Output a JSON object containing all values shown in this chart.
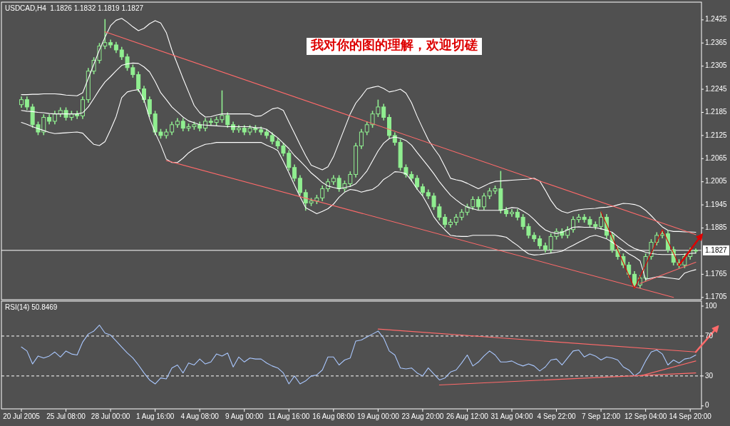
{
  "chart_data": [
    {
      "type": "candlestick",
      "title": "USDCAD,H4  1.1826 1.1832 1.1819 1.1827",
      "annotations": [
        "我对你的图的理解，欢迎切磋"
      ],
      "color": "#90ee90",
      "ylim": [
        1.1699,
        1.2471
      ],
      "yticks": [
        1.2425,
        1.2365,
        1.2305,
        1.2245,
        1.2185,
        1.2125,
        1.2065,
        1.2005,
        1.1945,
        1.1885,
        1.1765,
        1.1705
      ],
      "ref_lines": [
        {
          "axis": "y",
          "value": 1.1827,
          "label": "1.1827",
          "color": "#ffffff"
        }
      ],
      "ohlc": [
        [
          1.2205,
          1.2226,
          1.2197,
          1.2218
        ],
        [
          1.2218,
          1.2226,
          1.2191,
          1.2199
        ],
        [
          1.2199,
          1.2207,
          1.2145,
          1.2153
        ],
        [
          1.2153,
          1.2161,
          1.2126,
          1.2134
        ],
        [
          1.2134,
          1.218,
          1.2126,
          1.2172
        ],
        [
          1.2172,
          1.218,
          1.2154,
          1.2162
        ],
        [
          1.2162,
          1.2189,
          1.2154,
          1.2181
        ],
        [
          1.2181,
          1.2198,
          1.2173,
          1.219
        ],
        [
          1.219,
          1.2198,
          1.2164,
          1.2172
        ],
        [
          1.2172,
          1.2189,
          1.2164,
          1.2181
        ],
        [
          1.2181,
          1.2189,
          1.2168,
          1.2176
        ],
        [
          1.2176,
          1.2226,
          1.2168,
          1.2218
        ],
        [
          1.2218,
          1.23,
          1.221,
          1.2292
        ],
        [
          1.2292,
          1.2328,
          1.2284,
          1.232
        ],
        [
          1.232,
          1.2365,
          1.2312,
          1.2357
        ],
        [
          1.2357,
          1.2427,
          1.2349,
          1.2366
        ],
        [
          1.2366,
          1.2374,
          1.2352,
          1.236
        ],
        [
          1.236,
          1.2368,
          1.2339,
          1.2347
        ],
        [
          1.2347,
          1.2355,
          1.2321,
          1.2329
        ],
        [
          1.2329,
          1.2337,
          1.2293,
          1.2301
        ],
        [
          1.2301,
          1.2309,
          1.2275,
          1.2283
        ],
        [
          1.2283,
          1.2291,
          1.2238,
          1.2246
        ],
        [
          1.2246,
          1.2254,
          1.221,
          1.2218
        ],
        [
          1.2218,
          1.2226,
          1.2173,
          1.2181
        ],
        [
          1.2181,
          1.2189,
          1.2126,
          1.2134
        ],
        [
          1.2134,
          1.2142,
          1.2117,
          1.2125
        ],
        [
          1.2125,
          1.2142,
          1.2117,
          1.2134
        ],
        [
          1.2134,
          1.2161,
          1.2126,
          1.2153
        ],
        [
          1.2153,
          1.217,
          1.2145,
          1.2162
        ],
        [
          1.2162,
          1.217,
          1.2136,
          1.2144
        ],
        [
          1.2144,
          1.2156,
          1.2136,
          1.2148
        ],
        [
          1.2148,
          1.2161,
          1.214,
          1.2153
        ],
        [
          1.2153,
          1.2161,
          1.2136,
          1.2144
        ],
        [
          1.2144,
          1.217,
          1.2136,
          1.2162
        ],
        [
          1.2162,
          1.217,
          1.2151,
          1.2159
        ],
        [
          1.2159,
          1.2174,
          1.2151,
          1.2166
        ],
        [
          1.2166,
          1.2242,
          1.2158,
          1.2177
        ],
        [
          1.2177,
          1.2185,
          1.2145,
          1.2153
        ],
        [
          1.2153,
          1.2161,
          1.2132,
          1.214
        ],
        [
          1.214,
          1.2152,
          1.2132,
          1.2144
        ],
        [
          1.2144,
          1.2152,
          1.2126,
          1.2134
        ],
        [
          1.2134,
          1.2152,
          1.2126,
          1.2144
        ],
        [
          1.2144,
          1.2152,
          1.2132,
          1.214
        ],
        [
          1.214,
          1.2148,
          1.2126,
          1.2134
        ],
        [
          1.2134,
          1.2142,
          1.2117,
          1.2125
        ],
        [
          1.2125,
          1.2133,
          1.2102,
          1.211
        ],
        [
          1.211,
          1.2118,
          1.209,
          1.2098
        ],
        [
          1.2098,
          1.2106,
          1.2071,
          1.2079
        ],
        [
          1.2079,
          1.2087,
          1.2034,
          1.2042
        ],
        [
          1.2042,
          1.205,
          1.2006,
          1.2014
        ],
        [
          1.2014,
          1.2022,
          1.1969,
          1.1977
        ],
        [
          1.1977,
          1.1985,
          1.193,
          1.195
        ],
        [
          1.195,
          1.1963,
          1.1942,
          1.1955
        ],
        [
          1.1955,
          1.1971,
          1.1947,
          1.1963
        ],
        [
          1.1963,
          1.1995,
          1.1955,
          1.1987
        ],
        [
          1.1987,
          1.2013,
          1.1979,
          1.2005
        ],
        [
          1.2005,
          1.2022,
          1.1997,
          1.2014
        ],
        [
          1.2014,
          1.2022,
          1.1979,
          1.1987
        ],
        [
          1.1987,
          1.2008,
          1.1979,
          1.2
        ],
        [
          1.2,
          1.2032,
          1.1992,
          1.2024
        ],
        [
          1.2024,
          1.2106,
          1.2016,
          1.2098
        ],
        [
          1.2098,
          1.2142,
          1.209,
          1.2134
        ],
        [
          1.2134,
          1.2161,
          1.2126,
          1.2153
        ],
        [
          1.2153,
          1.2189,
          1.2145,
          1.2181
        ],
        [
          1.2181,
          1.2218,
          1.2173,
          1.2199
        ],
        [
          1.2199,
          1.2207,
          1.2164,
          1.2172
        ],
        [
          1.2172,
          1.218,
          1.2117,
          1.2125
        ],
        [
          1.2125,
          1.2133,
          1.2099,
          1.2107
        ],
        [
          1.2107,
          1.2115,
          1.2034,
          1.2042
        ],
        [
          1.2042,
          1.205,
          1.2016,
          1.2024
        ],
        [
          1.2024,
          1.2032,
          1.2006,
          1.2014
        ],
        [
          1.2014,
          1.2022,
          1.1984,
          1.1992
        ],
        [
          1.1992,
          1.2,
          1.1969,
          1.1977
        ],
        [
          1.1977,
          1.1985,
          1.196,
          1.1968
        ],
        [
          1.1968,
          1.1976,
          1.1932,
          1.194
        ],
        [
          1.194,
          1.1948,
          1.1905,
          1.1913
        ],
        [
          1.1913,
          1.1921,
          1.1886,
          1.1894
        ],
        [
          1.1894,
          1.1908,
          1.1886,
          1.19
        ],
        [
          1.19,
          1.1921,
          1.1892,
          1.1913
        ],
        [
          1.1913,
          1.1934,
          1.1905,
          1.1926
        ],
        [
          1.1926,
          1.1948,
          1.1918,
          1.194
        ],
        [
          1.194,
          1.1967,
          1.1932,
          1.1959
        ],
        [
          1.1959,
          1.1967,
          1.1932,
          1.194
        ],
        [
          1.194,
          1.1976,
          1.1932,
          1.1968
        ],
        [
          1.1968,
          1.1989,
          1.196,
          1.1981
        ],
        [
          1.1981,
          1.1995,
          1.1973,
          1.1987
        ],
        [
          1.1987,
          1.2033,
          1.1923,
          1.1931
        ],
        [
          1.1931,
          1.1939,
          1.1914,
          1.1922
        ],
        [
          1.1922,
          1.1934,
          1.1914,
          1.1926
        ],
        [
          1.1926,
          1.1934,
          1.1905,
          1.1913
        ],
        [
          1.1913,
          1.1921,
          1.1881,
          1.1889
        ],
        [
          1.1889,
          1.1897,
          1.1858,
          1.1866
        ],
        [
          1.1866,
          1.1874,
          1.1849,
          1.1857
        ],
        [
          1.1857,
          1.1865,
          1.1831,
          1.1839
        ],
        [
          1.1839,
          1.1847,
          1.1821,
          1.1829
        ],
        [
          1.1829,
          1.1871,
          1.1821,
          1.1863
        ],
        [
          1.1863,
          1.1884,
          1.1855,
          1.1876
        ],
        [
          1.1876,
          1.1884,
          1.1858,
          1.1866
        ],
        [
          1.1866,
          1.1889,
          1.1858,
          1.1881
        ],
        [
          1.1881,
          1.1915,
          1.1873,
          1.1907
        ],
        [
          1.1907,
          1.1921,
          1.1899,
          1.1913
        ],
        [
          1.1913,
          1.1921,
          1.1899,
          1.1907
        ],
        [
          1.1907,
          1.1915,
          1.1886,
          1.1894
        ],
        [
          1.1894,
          1.1902,
          1.1881,
          1.1889
        ],
        [
          1.1889,
          1.1927,
          1.1881,
          1.1913
        ],
        [
          1.1913,
          1.1921,
          1.1858,
          1.1866
        ],
        [
          1.1866,
          1.1874,
          1.1821,
          1.1829
        ],
        [
          1.1829,
          1.1837,
          1.1803,
          1.1811
        ],
        [
          1.1811,
          1.1819,
          1.1781,
          1.1789
        ],
        [
          1.1789,
          1.1797,
          1.1757,
          1.1765
        ],
        [
          1.1765,
          1.1773,
          1.1728,
          1.1737
        ],
        [
          1.1737,
          1.1763,
          1.1729,
          1.1755
        ],
        [
          1.1755,
          1.1819,
          1.1747,
          1.1811
        ],
        [
          1.1811,
          1.1856,
          1.1803,
          1.1848
        ],
        [
          1.1848,
          1.1874,
          1.184,
          1.1866
        ],
        [
          1.1866,
          1.1881,
          1.1858,
          1.187
        ],
        [
          1.187,
          1.1878,
          1.1821,
          1.1829
        ],
        [
          1.1829,
          1.1837,
          1.1788,
          1.1796
        ],
        [
          1.1796,
          1.1804,
          1.1781,
          1.1789
        ],
        [
          1.1789,
          1.1819,
          1.1781,
          1.1811
        ],
        [
          1.1811,
          1.1834,
          1.1803,
          1.1826
        ],
        [
          1.1826,
          1.1832,
          1.1819,
          1.1827
        ]
      ],
      "series": [
        {
          "type": "line",
          "color": "#ffffff",
          "values": [
            1.2231,
            1.2231,
            1.2232,
            1.2232,
            1.2233,
            1.2233,
            1.2233,
            1.2232,
            1.223,
            1.2229,
            1.2228,
            1.2236,
            1.2273,
            1.231,
            1.2347,
            1.238,
            1.241,
            1.2424,
            1.2429,
            1.2419,
            1.2407,
            1.2397,
            1.2403,
            1.2415,
            1.2423,
            1.2417,
            1.2392,
            1.2347,
            1.231,
            1.2273,
            1.2238,
            1.2203,
            1.2184,
            1.2173,
            1.2174,
            1.2178,
            1.2181,
            1.2181,
            1.2181,
            1.2181,
            1.2181,
            1.2181,
            1.2175,
            1.2176,
            1.2185,
            1.2194,
            1.2197,
            1.219,
            1.216,
            1.2131,
            1.2101,
            1.2073,
            1.2048,
            1.2042,
            1.2036,
            1.2044,
            1.207,
            1.2107,
            1.2144,
            1.2181,
            1.2209,
            1.2227,
            1.2246,
            1.225,
            1.2253,
            1.2247,
            1.2238,
            1.2241,
            1.2245,
            1.2235,
            1.221,
            1.2175,
            1.2144,
            1.2114,
            1.2092,
            1.2072,
            1.2044,
            1.2014,
            1.201,
            1.2007,
            1.2001,
            1.1994,
            1.1987,
            1.1994,
            1.2001,
            1.2006,
            1.2007,
            1.2008,
            1.2009,
            1.201,
            1.2011,
            1.2012,
            1.2014,
            1.2007,
            1.1983,
            1.1957,
            1.1937,
            1.1928,
            1.1924,
            1.1929,
            1.1932,
            1.1934,
            1.1935,
            1.1936,
            1.1938,
            1.1939,
            1.1941,
            1.1945,
            1.1949,
            1.1948,
            1.1946,
            1.1941,
            1.1931,
            1.1917,
            1.1902,
            1.1888,
            1.1879,
            1.1876,
            1.1876,
            1.1875,
            1.1875,
            1.1874
          ]
        },
        {
          "type": "line",
          "color": "#ffffff",
          "values": [
            1.219,
            1.2188,
            1.2187,
            1.2185,
            1.2184,
            1.2182,
            1.2181,
            1.2181,
            1.2181,
            1.2181,
            1.2181,
            1.2184,
            1.2199,
            1.2221,
            1.2244,
            1.2264,
            1.2278,
            1.2293,
            1.2307,
            1.2311,
            1.2313,
            1.2312,
            1.2303,
            1.229,
            1.2265,
            1.2236,
            1.2218,
            1.2199,
            1.2186,
            1.2173,
            1.2163,
            1.2158,
            1.2153,
            1.2152,
            1.2151,
            1.215,
            1.2149,
            1.2148,
            1.2148,
            1.2148,
            1.2148,
            1.2148,
            1.2145,
            1.2145,
            1.2141,
            1.213,
            1.2119,
            1.2105,
            1.2091,
            1.2073,
            1.2059,
            1.2044,
            1.2028,
            1.2016,
            1.2003,
            1.1994,
            1.199,
            1.1987,
            1.199,
            1.1993,
            1.2,
            1.2016,
            1.2033,
            1.2059,
            1.2085,
            1.2105,
            1.2117,
            1.2121,
            1.2118,
            1.2112,
            1.21,
            1.2081,
            1.2063,
            1.2045,
            1.2026,
            1.2005,
            1.1987,
            1.197,
            1.1958,
            1.1947,
            1.1939,
            1.1935,
            1.1931,
            1.1931,
            1.1931,
            1.1931,
            1.1931,
            1.1934,
            1.1938,
            1.1937,
            1.1929,
            1.192,
            1.1907,
            1.1892,
            1.188,
            1.1874,
            1.1871,
            1.1874,
            1.188,
            1.1887,
            1.1888,
            1.1887,
            1.1887,
            1.1886,
            1.1883,
            1.1879,
            1.1874,
            1.1862,
            1.1851,
            1.184,
            1.1832,
            1.1827,
            1.1822,
            1.1819,
            1.1817,
            1.1816,
            1.1816,
            1.1816,
            1.1816,
            1.1817,
            1.1819,
            1.182
          ]
        },
        {
          "type": "line",
          "color": "#ffffff",
          "values": [
            1.2159,
            1.2154,
            1.2148,
            1.2143,
            1.2138,
            1.2133,
            1.213,
            1.2131,
            1.2132,
            1.2133,
            1.2134,
            1.2131,
            1.2116,
            1.2102,
            1.2099,
            1.2109,
            1.214,
            1.2174,
            1.2223,
            1.2238,
            1.2242,
            1.2244,
            1.2218,
            1.2169,
            1.2132,
            1.2101,
            1.2064,
            1.2055,
            1.2055,
            1.2066,
            1.208,
            1.209,
            1.2096,
            1.2102,
            1.2104,
            1.2107,
            1.2107,
            1.2107,
            1.2107,
            1.2107,
            1.2107,
            1.2107,
            1.2107,
            1.2107,
            1.21,
            1.2094,
            1.2086,
            1.2058,
            1.2028,
            1.1996,
            1.1966,
            1.1938,
            1.193,
            1.1922,
            1.1928,
            1.1935,
            1.1947,
            1.1965,
            1.1978,
            1.1985,
            1.1983,
            1.1978,
            1.1982,
            1.1985,
            1.1995,
            1.2011,
            1.202,
            1.2031,
            1.203,
            1.2026,
            1.2008,
            1.1986,
            1.1968,
            1.1943,
            1.1914,
            1.1895,
            1.188,
            1.1866,
            1.1864,
            1.1863,
            1.1863,
            1.1866,
            1.1866,
            1.1866,
            1.1866,
            1.1866,
            1.1864,
            1.1861,
            1.185,
            1.184,
            1.1828,
            1.1818,
            1.1815,
            1.1816,
            1.1818,
            1.182,
            1.1822,
            1.1825,
            1.1833,
            1.184,
            1.1848,
            1.1855,
            1.1863,
            1.1866,
            1.1862,
            1.1857,
            1.1848,
            1.1838,
            1.1828,
            1.1818,
            1.181,
            1.18,
            1.1752,
            1.1755,
            1.1758,
            1.1758,
            1.1756,
            1.1754,
            1.1752,
            1.1768,
            1.1773,
            1.1777
          ]
        },
        {
          "type": "line",
          "color": "#ff6a6a",
          "values": [
            null,
            null,
            null,
            null,
            null,
            null,
            null,
            null,
            null,
            null,
            null,
            null,
            null,
            null,
            null,
            1.2394,
            null,
            null,
            null,
            null,
            null,
            null,
            null,
            null,
            null,
            null,
            null,
            null,
            null,
            null,
            null,
            null,
            null,
            null,
            null,
            null,
            null,
            null,
            null,
            null,
            null,
            null,
            null,
            null,
            null,
            null,
            null,
            null,
            null,
            null,
            null,
            null,
            null,
            null,
            null,
            null,
            null,
            null,
            null,
            null,
            null,
            null,
            null,
            null,
            null,
            null,
            null,
            null,
            null,
            null,
            null,
            null,
            null,
            null,
            null,
            null,
            null,
            null,
            null,
            null,
            null,
            null,
            null,
            null,
            null,
            null,
            null,
            null,
            null,
            null,
            null,
            null,
            null,
            null,
            null,
            null,
            null,
            null,
            null,
            null,
            null,
            null,
            null,
            null,
            null,
            null,
            null,
            null,
            null,
            null,
            null,
            null,
            null,
            null,
            null,
            null,
            null,
            null,
            null,
            null,
            null,
            1.1868
          ]
        },
        {
          "type": "line",
          "color": "#ff6a6a",
          "values": [
            null,
            null,
            null,
            null,
            null,
            null,
            null,
            null,
            null,
            null,
            null,
            null,
            null,
            null,
            null,
            null,
            null,
            null,
            null,
            null,
            null,
            null,
            null,
            null,
            null,
            null,
            1.206,
            null,
            null,
            null,
            null,
            null,
            null,
            null,
            null,
            null,
            null,
            null,
            null,
            null,
            null,
            null,
            null,
            null,
            null,
            null,
            null,
            null,
            null,
            null,
            null,
            null,
            null,
            null,
            null,
            null,
            null,
            null,
            null,
            null,
            null,
            null,
            null,
            null,
            null,
            null,
            null,
            null,
            null,
            null,
            null,
            null,
            null,
            null,
            null,
            null,
            null,
            null,
            null,
            null,
            null,
            null,
            null,
            null,
            null,
            null,
            null,
            null,
            null,
            null,
            null,
            null,
            null,
            null,
            null,
            null,
            null,
            null,
            null,
            null,
            null,
            null,
            null,
            null,
            null,
            null,
            null,
            null,
            null,
            null,
            null,
            null,
            null,
            null,
            null,
            null,
            null,
            1.1705,
            null,
            null,
            null,
            null
          ]
        },
        {
          "type": "line",
          "color": "#ff6a6a",
          "values": [
            null,
            null,
            null,
            null,
            null,
            null,
            null,
            null,
            null,
            null,
            null,
            null,
            null,
            null,
            null,
            null,
            null,
            null,
            null,
            null,
            null,
            null,
            null,
            null,
            null,
            null,
            null,
            null,
            null,
            null,
            null,
            null,
            null,
            null,
            null,
            null,
            null,
            null,
            null,
            null,
            null,
            null,
            null,
            null,
            null,
            null,
            null,
            null,
            null,
            null,
            null,
            null,
            null,
            null,
            null,
            null,
            null,
            null,
            null,
            null,
            null,
            null,
            null,
            null,
            null,
            null,
            null,
            null,
            null,
            null,
            null,
            null,
            null,
            null,
            null,
            null,
            null,
            null,
            null,
            null,
            null,
            null,
            null,
            null,
            null,
            null,
            null,
            null,
            null,
            null,
            null,
            null,
            null,
            null,
            null,
            null,
            null,
            null,
            null,
            null,
            null,
            null,
            null,
            null,
            null,
            null,
            null,
            null,
            null,
            null,
            null,
            1.1741,
            null,
            null,
            null,
            null,
            null,
            null,
            null,
            null,
            null,
            1.1796
          ]
        },
        {
          "type": "line",
          "color": "#dd0000",
          "values": [
            null,
            null,
            null,
            null,
            null,
            null,
            null,
            null,
            null,
            null,
            null,
            null,
            null,
            null,
            null,
            null,
            null,
            null,
            null,
            null,
            null,
            null,
            null,
            null,
            null,
            null,
            null,
            null,
            null,
            null,
            null,
            null,
            null,
            null,
            null,
            null,
            null,
            null,
            null,
            null,
            null,
            null,
            null,
            null,
            null,
            null,
            null,
            null,
            null,
            null,
            null,
            null,
            null,
            null,
            null,
            null,
            null,
            null,
            null,
            null,
            null,
            null,
            null,
            null,
            null,
            null,
            null,
            null,
            null,
            null,
            null,
            null,
            null,
            null,
            null,
            null,
            null,
            null,
            null,
            null,
            null,
            null,
            null,
            null,
            null,
            null,
            null,
            null,
            null,
            null,
            null,
            null,
            null,
            null,
            null,
            null,
            null,
            null,
            null,
            null,
            null,
            null,
            null,
            null,
            1.1927,
            null,
            null,
            null,
            null,
            null,
            1.1728,
            null,
            null,
            null,
            null,
            1.1881,
            null,
            null,
            1.1789,
            null,
            null,
            null
          ]
        }
      ]
    },
    {
      "type": "line",
      "title": "RSI(14) 50.8469",
      "categories": [
        "20 Jul 2005",
        null,
        null,
        null,
        null,
        null,
        null,
        null,
        "25 Jul 08:00",
        null,
        null,
        null,
        null,
        null,
        null,
        null,
        "28 Jul 00:00",
        null,
        null,
        null,
        null,
        null,
        null,
        null,
        "1 Aug 16:00",
        null,
        null,
        null,
        null,
        null,
        null,
        null,
        "4 Aug 08:00",
        null,
        null,
        null,
        null,
        null,
        null,
        null,
        "9 Aug 00:00",
        null,
        null,
        null,
        null,
        null,
        null,
        null,
        "11 Aug 16:00",
        null,
        null,
        null,
        null,
        null,
        null,
        null,
        "16 Aug 08:00",
        null,
        null,
        null,
        null,
        null,
        null,
        null,
        "19 Aug 00:00",
        null,
        null,
        null,
        null,
        null,
        null,
        null,
        "23 Aug 20:00",
        null,
        null,
        null,
        null,
        null,
        null,
        null,
        "26 Aug 12:00",
        null,
        null,
        null,
        null,
        null,
        null,
        null,
        "31 Aug 04:00",
        null,
        null,
        null,
        null,
        null,
        null,
        null,
        "4 Sep 22:00",
        null,
        null,
        null,
        null,
        null,
        null,
        null,
        "7 Sep 12:00",
        null,
        null,
        null,
        null,
        null,
        null,
        null,
        "12 Sep 04:00",
        null,
        null,
        null,
        null,
        null,
        null,
        null,
        "14 Sep 20:00",
        null
      ],
      "ylim": [
        -3,
        105
      ],
      "yticks": [
        0,
        30,
        70,
        100
      ],
      "ref_lines": [
        {
          "axis": "y",
          "value": 70,
          "color": "#ffffff",
          "line_style": "dashed"
        },
        {
          "axis": "y",
          "value": 30,
          "color": "#ffffff",
          "line_style": "dashed"
        }
      ],
      "series": [
        {
          "color": "#aac8ff",
          "values": [
            59,
            55,
            42,
            50,
            48,
            50,
            54,
            49,
            55,
            52,
            51,
            64,
            72,
            75,
            81,
            73,
            71,
            65,
            59,
            53,
            48,
            41,
            33,
            26,
            22,
            28,
            27,
            38,
            41,
            33,
            43,
            41,
            47,
            42,
            44,
            52,
            50,
            53,
            39,
            49,
            44,
            48,
            47,
            47,
            43,
            40,
            38,
            33,
            22,
            30,
            22,
            25,
            30,
            31,
            36,
            49,
            49,
            41,
            46,
            48,
            65,
            66,
            69,
            72,
            75,
            68,
            55,
            51,
            38,
            37,
            38,
            33,
            30,
            38,
            32,
            26,
            28,
            34,
            36,
            43,
            51,
            40,
            44,
            50,
            55,
            51,
            44,
            44,
            45,
            42,
            40,
            42,
            40,
            35,
            39,
            46,
            47,
            41,
            48,
            55,
            56,
            49,
            52,
            50,
            46,
            49,
            48,
            46,
            39,
            36,
            30,
            34,
            45,
            54,
            56,
            52,
            41,
            46,
            43,
            47,
            48,
            51
          ]
        },
        {
          "color": "#ff6a6a",
          "values": [
            null,
            null,
            null,
            null,
            null,
            null,
            null,
            null,
            null,
            null,
            null,
            null,
            null,
            null,
            null,
            null,
            null,
            null,
            null,
            null,
            null,
            null,
            null,
            null,
            null,
            null,
            null,
            null,
            null,
            null,
            null,
            null,
            null,
            null,
            null,
            null,
            null,
            null,
            null,
            null,
            null,
            null,
            null,
            null,
            null,
            null,
            null,
            null,
            null,
            null,
            null,
            null,
            null,
            null,
            null,
            null,
            null,
            null,
            null,
            null,
            null,
            null,
            null,
            null,
            null,
            null,
            null,
            null,
            null,
            null,
            null,
            null,
            null,
            null,
            null,
            21,
            null,
            null,
            null,
            null,
            null,
            null,
            null,
            null,
            null,
            null,
            null,
            null,
            null,
            null,
            null,
            null,
            null,
            null,
            null,
            null,
            null,
            null,
            null,
            null,
            null,
            null,
            null,
            null,
            null,
            null,
            null,
            null,
            null,
            null,
            null,
            null,
            null,
            null,
            null,
            null,
            null,
            null,
            null,
            null,
            null,
            33
          ]
        },
        {
          "color": "#ff6a6a",
          "values": [
            null,
            null,
            null,
            null,
            null,
            null,
            null,
            null,
            null,
            null,
            null,
            null,
            null,
            null,
            null,
            null,
            null,
            null,
            null,
            null,
            null,
            null,
            null,
            null,
            null,
            null,
            null,
            null,
            null,
            null,
            null,
            null,
            null,
            null,
            null,
            null,
            null,
            null,
            null,
            null,
            null,
            null,
            null,
            null,
            null,
            null,
            null,
            null,
            null,
            null,
            null,
            null,
            null,
            null,
            null,
            null,
            null,
            null,
            null,
            null,
            null,
            null,
            null,
            null,
            null,
            null,
            null,
            null,
            null,
            null,
            null,
            null,
            null,
            null,
            null,
            null,
            null,
            null,
            null,
            null,
            null,
            null,
            null,
            null,
            null,
            null,
            null,
            null,
            null,
            null,
            null,
            null,
            null,
            null,
            null,
            null,
            null,
            null,
            null,
            null,
            null,
            null,
            null,
            null,
            null,
            null,
            null,
            null,
            null,
            null,
            null,
            30,
            null,
            null,
            null,
            null,
            null,
            null,
            null,
            null,
            null,
            45
          ]
        },
        {
          "color": "#ff6a6a",
          "values": [
            null,
            null,
            null,
            null,
            null,
            null,
            null,
            null,
            null,
            null,
            null,
            null,
            null,
            null,
            null,
            null,
            null,
            null,
            null,
            null,
            null,
            null,
            null,
            null,
            null,
            null,
            null,
            null,
            null,
            null,
            null,
            null,
            null,
            null,
            null,
            null,
            null,
            null,
            null,
            null,
            null,
            null,
            null,
            null,
            null,
            null,
            null,
            null,
            null,
            null,
            null,
            null,
            null,
            null,
            null,
            null,
            null,
            null,
            null,
            null,
            null,
            null,
            null,
            null,
            77,
            null,
            null,
            null,
            null,
            null,
            null,
            null,
            null,
            null,
            null,
            null,
            null,
            null,
            null,
            null,
            null,
            null,
            null,
            null,
            null,
            null,
            null,
            null,
            null,
            null,
            null,
            null,
            null,
            null,
            null,
            null,
            null,
            null,
            null,
            null,
            null,
            null,
            null,
            null,
            null,
            null,
            null,
            null,
            null,
            null,
            null,
            null,
            null,
            null,
            null,
            null,
            null,
            null,
            null,
            null,
            null,
            54
          ]
        }
      ]
    }
  ]
}
